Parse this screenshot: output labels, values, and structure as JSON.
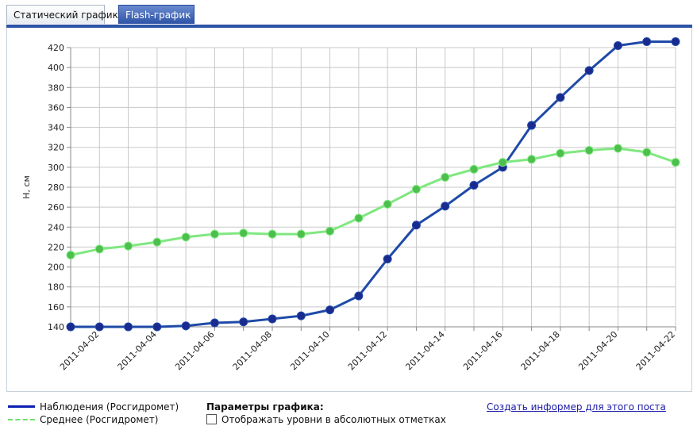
{
  "tabs": [
    {
      "label": "Статический график"
    },
    {
      "label": "Flash-график"
    }
  ],
  "chart_data": {
    "type": "line",
    "ylabel": "H, см",
    "xlabel": "",
    "ylim": [
      140,
      420
    ],
    "yticks": [
      140,
      160,
      180,
      200,
      220,
      240,
      260,
      280,
      300,
      320,
      340,
      360,
      380,
      400,
      420
    ],
    "x": [
      "2011-04-01",
      "2011-04-02",
      "2011-04-03",
      "2011-04-04",
      "2011-04-05",
      "2011-04-06",
      "2011-04-07",
      "2011-04-08",
      "2011-04-09",
      "2011-04-10",
      "2011-04-11",
      "2011-04-12",
      "2011-04-13",
      "2011-04-14",
      "2011-04-15",
      "2011-04-16",
      "2011-04-17",
      "2011-04-18",
      "2011-04-19",
      "2011-04-20",
      "2011-04-21",
      "2011-04-22"
    ],
    "xtick_labels": [
      "2011-04-02",
      "2011-04-04",
      "2011-04-06",
      "2011-04-08",
      "2011-04-10",
      "2011-04-12",
      "2011-04-14",
      "2011-04-16",
      "2011-04-18",
      "2011-04-20",
      "2011-04-22"
    ],
    "grid": true,
    "series": [
      {
        "name": "Наблюдения (Росгидромет)",
        "color": "#1f4aa8",
        "marker": "#1a2a8e",
        "values": [
          140,
          140,
          140,
          140,
          141,
          144,
          145,
          148,
          151,
          157,
          171,
          208,
          242,
          261,
          282,
          300,
          342,
          370,
          397,
          422,
          426,
          426
        ]
      },
      {
        "name": "Среднее (Росгидромет)",
        "color": "#7fe87f",
        "marker": "#4cbf4c",
        "values": [
          212,
          218,
          221,
          225,
          230,
          233,
          234,
          233,
          233,
          236,
          249,
          263,
          278,
          290,
          298,
          305,
          308,
          314,
          317,
          319,
          315,
          305
        ]
      }
    ]
  },
  "legend": {
    "observations": "Наблюдения (Росгидромет)",
    "average": "Среднее (Росгидромет)"
  },
  "params": {
    "title": "Параметры графика:",
    "absolute_levels": "Отображать уровни в абсолютных отметках"
  },
  "informer_link": "Создать информер для этого поста"
}
